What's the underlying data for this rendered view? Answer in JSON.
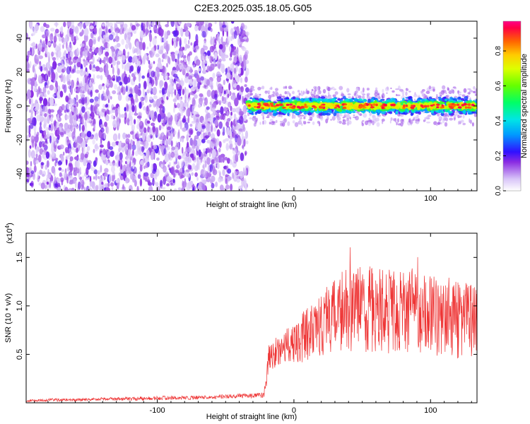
{
  "title": "C2E3.2025.035.18.05.G05",
  "chart_data": [
    {
      "type": "heatmap",
      "xlabel": "Height of straight line (km)",
      "ylabel": "Frequency (Hz)",
      "xlim": [
        -196,
        134
      ],
      "ylim": [
        -50,
        50
      ],
      "x_ticks": [
        -100,
        0,
        100
      ],
      "y_ticks": [
        -40,
        -20,
        0,
        20,
        40
      ],
      "colorbar": {
        "label": "Normalized spectral amplitude",
        "range": [
          0,
          0.97
        ],
        "ticks": [
          0.0,
          0.2,
          0.4,
          0.6,
          0.8
        ]
      },
      "regions": [
        {
          "x_range": [
            -196,
            -34
          ],
          "y_range": [
            -50,
            50
          ],
          "amplitude": [
            0.05,
            0.2
          ],
          "pattern": "noise"
        },
        {
          "x_range": [
            -34,
            134
          ],
          "y_range": [
            -5,
            5
          ],
          "amplitude": [
            0.3,
            0.95
          ],
          "pattern": "band"
        }
      ]
    },
    {
      "type": "line",
      "xlabel": "Height of straight line (km)",
      "ylabel": "SNR (10 * v/v)",
      "y_multiplier": "(x10",
      "y_multiplier_exp": "4",
      "y_multiplier_close": ")",
      "xlim": [
        -196,
        134
      ],
      "ylim": [
        0,
        1.75
      ],
      "x_ticks": [
        -100,
        0,
        100
      ],
      "y_ticks": [
        "0.5",
        "1.0",
        "1.5"
      ],
      "y_tick_values": [
        0.5,
        1.0,
        1.5
      ],
      "series": [
        {
          "color": "#ee3333",
          "x": [
            -196,
            -180,
            -160,
            -140,
            -120,
            -100,
            -80,
            -60,
            -40,
            -30,
            -22,
            -20,
            -19,
            -15,
            -10,
            -5,
            0,
            5,
            10,
            15,
            20,
            25,
            30,
            35,
            40,
            45,
            50,
            55,
            60,
            65,
            70,
            75,
            80,
            85,
            90,
            95,
            100,
            105,
            110,
            115,
            120,
            125,
            130,
            134
          ],
          "y": [
            0.02,
            0.03,
            0.03,
            0.04,
            0.04,
            0.05,
            0.05,
            0.06,
            0.07,
            0.07,
            0.08,
            0.25,
            0.45,
            0.5,
            0.55,
            0.6,
            0.62,
            0.66,
            0.72,
            0.78,
            0.82,
            0.88,
            0.9,
            0.92,
            0.95,
            0.98,
            0.96,
            0.97,
            0.94,
            0.98,
            0.95,
            0.93,
            0.97,
            0.94,
            0.95,
            0.93,
            0.96,
            0.9,
            0.92,
            0.88,
            0.85,
            0.9,
            0.88,
            0.85
          ],
          "noise_amplitude": [
            0.01,
            0.015,
            0.015,
            0.015,
            0.02,
            0.02,
            0.02,
            0.02,
            0.025,
            0.025,
            0.03,
            0.1,
            0.15,
            0.15,
            0.16,
            0.18,
            0.2,
            0.25,
            0.28,
            0.3,
            0.34,
            0.36,
            0.38,
            0.4,
            0.42,
            0.45,
            0.45,
            0.45,
            0.45,
            0.46,
            0.45,
            0.45,
            0.46,
            0.45,
            0.45,
            0.44,
            0.43,
            0.42,
            0.42,
            0.4,
            0.4,
            0.4,
            0.4,
            0.38
          ]
        }
      ]
    }
  ]
}
